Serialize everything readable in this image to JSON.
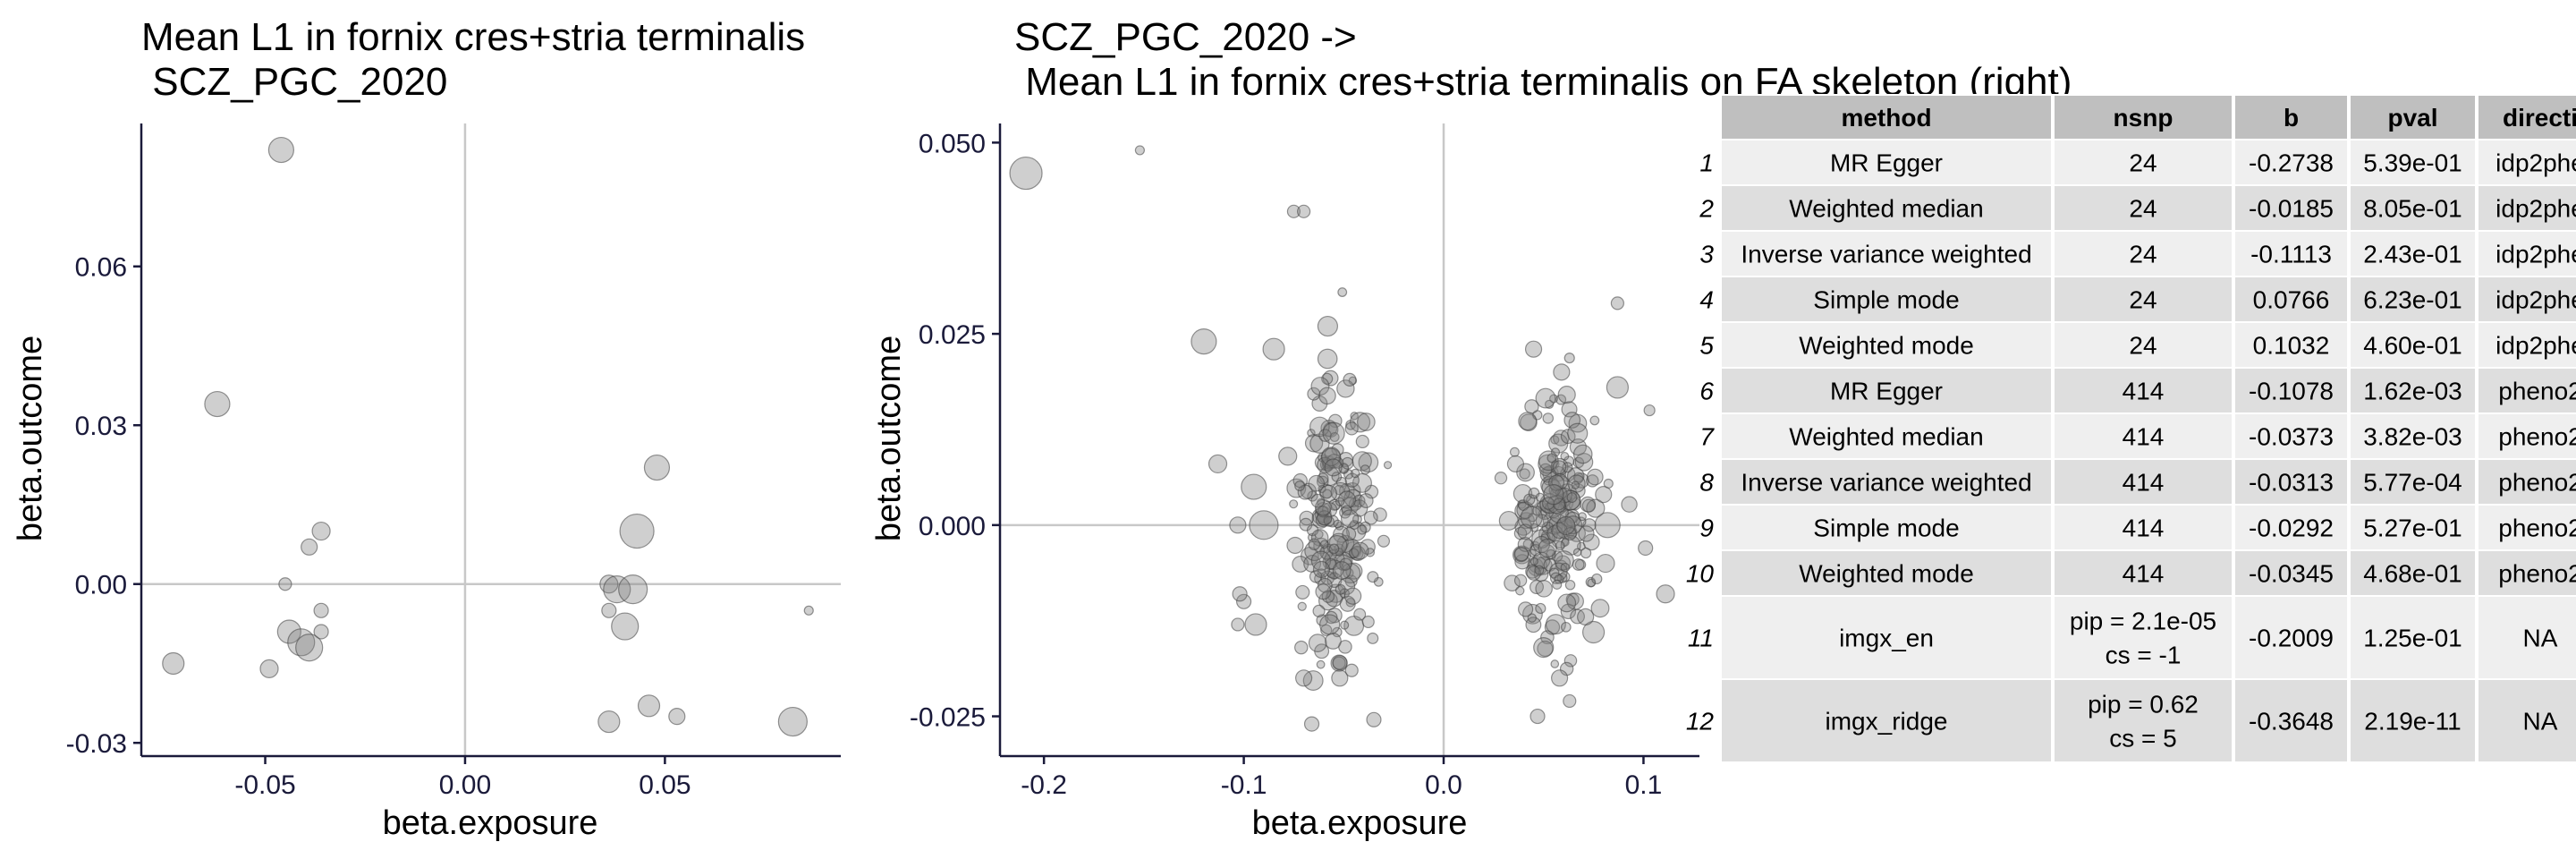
{
  "colors": {
    "point_fill": "#808080",
    "point_stroke": "#404040",
    "axis": "#1a1a3a",
    "zero_line": "#c8c8c8",
    "table_header": "#bfbfbf",
    "table_row_light": "#efefef",
    "table_row_dark": "#dedede",
    "table_border": "#ffffff"
  },
  "chart_data": [
    {
      "type": "scatter",
      "title_lines": [
        "Mean L1 in fornix cres+stria terminalis",
        " SCZ_PGC_2020"
      ],
      "xlabel": "beta.exposure",
      "ylabel": "beta.outcome",
      "xlim": [
        -0.081,
        0.094
      ],
      "ylim": [
        -0.0325,
        0.087
      ],
      "xticks": [
        -0.05,
        0.0,
        0.05
      ],
      "xtick_labels": [
        "-0.05",
        "0.00",
        "0.05"
      ],
      "yticks": [
        -0.03,
        0.0,
        0.03,
        0.06
      ],
      "ytick_labels": [
        "-0.03",
        "0.00",
        "0.03",
        "0.06"
      ],
      "zero_lines": true,
      "grid": false,
      "points": [
        {
          "x": -0.046,
          "y": 0.082,
          "size": 14
        },
        {
          "x": -0.062,
          "y": 0.034,
          "size": 14
        },
        {
          "x": -0.073,
          "y": -0.015,
          "size": 12
        },
        {
          "x": -0.049,
          "y": -0.016,
          "size": 10
        },
        {
          "x": -0.045,
          "y": 0.0,
          "size": 7
        },
        {
          "x": -0.036,
          "y": 0.01,
          "size": 10
        },
        {
          "x": -0.039,
          "y": 0.007,
          "size": 9
        },
        {
          "x": -0.036,
          "y": -0.005,
          "size": 8
        },
        {
          "x": -0.036,
          "y": -0.009,
          "size": 8
        },
        {
          "x": -0.044,
          "y": -0.009,
          "size": 13
        },
        {
          "x": -0.041,
          "y": -0.011,
          "size": 15
        },
        {
          "x": -0.039,
          "y": -0.012,
          "size": 15
        },
        {
          "x": 0.048,
          "y": 0.022,
          "size": 14
        },
        {
          "x": 0.043,
          "y": 0.01,
          "size": 19
        },
        {
          "x": 0.036,
          "y": 0.0,
          "size": 10
        },
        {
          "x": 0.038,
          "y": -0.001,
          "size": 15
        },
        {
          "x": 0.042,
          "y": -0.001,
          "size": 16
        },
        {
          "x": 0.036,
          "y": -0.005,
          "size": 8
        },
        {
          "x": 0.04,
          "y": -0.008,
          "size": 15
        },
        {
          "x": 0.046,
          "y": -0.023,
          "size": 12
        },
        {
          "x": 0.036,
          "y": -0.026,
          "size": 12
        },
        {
          "x": 0.053,
          "y": -0.025,
          "size": 9
        },
        {
          "x": 0.082,
          "y": -0.026,
          "size": 16
        },
        {
          "x": 0.086,
          "y": -0.005,
          "size": 5
        }
      ]
    },
    {
      "type": "scatter",
      "title_lines": [
        "SCZ_PGC_2020 ->",
        " Mean L1 in fornix cres+stria terminalis on FA skeleton (right)"
      ],
      "xlabel": "beta.exposure",
      "ylabel": "beta.outcome",
      "xlim": [
        -0.222,
        0.128
      ],
      "ylim": [
        -0.0302,
        0.0525
      ],
      "xticks": [
        -0.2,
        -0.1,
        0.0,
        0.1
      ],
      "xtick_labels": [
        "-0.2",
        "-0.1",
        "0.0",
        "0.1"
      ],
      "yticks": [
        -0.025,
        0.0,
        0.025,
        0.05
      ],
      "ytick_labels": [
        "-0.025",
        "0.000",
        "0.025",
        "0.050"
      ],
      "zero_lines": true,
      "grid": false,
      "points": [
        {
          "x": -0.209,
          "y": 0.046,
          "size": 18
        },
        {
          "x": -0.152,
          "y": 0.049,
          "size": 5
        },
        {
          "x": -0.12,
          "y": 0.024,
          "size": 14
        },
        {
          "x": -0.085,
          "y": 0.023,
          "size": 12
        },
        {
          "x": -0.075,
          "y": 0.041,
          "size": 7
        },
        {
          "x": -0.07,
          "y": 0.041,
          "size": 7
        },
        {
          "x": -0.058,
          "y": 0.026,
          "size": 11
        },
        {
          "x": -0.113,
          "y": 0.008,
          "size": 10
        },
        {
          "x": -0.1,
          "y": -0.01,
          "size": 8
        },
        {
          "x": -0.103,
          "y": -0.013,
          "size": 7
        },
        {
          "x": -0.102,
          "y": -0.009,
          "size": 8
        },
        {
          "x": -0.103,
          "y": 0.0,
          "size": 9
        },
        {
          "x": -0.09,
          "y": 0.0,
          "size": 16
        },
        {
          "x": -0.095,
          "y": 0.005,
          "size": 14
        },
        {
          "x": -0.094,
          "y": -0.013,
          "size": 12
        },
        {
          "x": -0.057,
          "y": -0.013,
          "size": 11
        },
        {
          "x": -0.052,
          "y": -0.02,
          "size": 9
        },
        {
          "x": -0.066,
          "y": -0.026,
          "size": 8
        },
        {
          "x": -0.07,
          "y": -0.02,
          "size": 9
        },
        {
          "x": -0.052,
          "y": -0.018,
          "size": 8
        },
        {
          "x": -0.046,
          "y": -0.019,
          "size": 7
        },
        {
          "x": -0.047,
          "y": 0.019,
          "size": 7
        },
        {
          "x": -0.078,
          "y": 0.009,
          "size": 10
        },
        {
          "x": -0.055,
          "y": 0.012,
          "size": 12
        },
        {
          "x": 0.045,
          "y": 0.023,
          "size": 9
        },
        {
          "x": 0.059,
          "y": 0.02,
          "size": 9
        },
        {
          "x": 0.087,
          "y": 0.029,
          "size": 7
        },
        {
          "x": 0.087,
          "y": 0.018,
          "size": 12
        },
        {
          "x": 0.103,
          "y": 0.015,
          "size": 6
        },
        {
          "x": 0.08,
          "y": 0.004,
          "size": 9
        },
        {
          "x": 0.081,
          "y": -0.005,
          "size": 10
        },
        {
          "x": 0.075,
          "y": -0.014,
          "size": 12
        },
        {
          "x": 0.047,
          "y": -0.025,
          "size": 8
        },
        {
          "x": 0.063,
          "y": -0.023,
          "size": 7
        },
        {
          "x": 0.111,
          "y": -0.009,
          "size": 10
        },
        {
          "x": 0.101,
          "y": -0.003,
          "size": 8
        },
        {
          "x": 0.082,
          "y": 0.0,
          "size": 14
        },
        {
          "x": 0.058,
          "y": -0.02,
          "size": 9
        },
        {
          "x": 0.05,
          "y": -0.016,
          "size": 11
        },
        {
          "x": 0.067,
          "y": 0.012,
          "size": 11
        },
        {
          "x": 0.036,
          "y": 0.008,
          "size": 9
        },
        {
          "x": 0.071,
          "y": -0.012,
          "size": 9
        },
        {
          "x": 0.041,
          "y": -0.011,
          "size": 8
        },
        {
          "x": 0.044,
          "y": 0.001,
          "size": 12
        },
        {
          "x": 0.055,
          "y": 0.004,
          "size": 11
        },
        {
          "x": 0.052,
          "y": -0.003,
          "size": 10
        }
      ],
      "clusters": [
        {
          "x_center": -0.053,
          "x_sd": 0.0095,
          "y_center": 0.0,
          "y_sd": 0.0082,
          "count": 200,
          "size_min": 4,
          "size_max": 11
        },
        {
          "x_center": 0.055,
          "x_sd": 0.0105,
          "y_center": 0.0,
          "y_sd": 0.0078,
          "count": 200,
          "size_min": 4,
          "size_max": 11
        }
      ]
    }
  ],
  "table": {
    "columns": [
      "method",
      "nsnp",
      "b",
      "pval",
      "directi"
    ],
    "rows": [
      {
        "num": "1",
        "cells": [
          "MR Egger",
          [
            "24"
          ],
          "-0.2738",
          "5.39e-01",
          "idp2phe"
        ]
      },
      {
        "num": "2",
        "cells": [
          "Weighted median",
          [
            "24"
          ],
          "-0.0185",
          "8.05e-01",
          "idp2phe"
        ]
      },
      {
        "num": "3",
        "cells": [
          "Inverse variance weighted",
          [
            "24"
          ],
          "-0.1113",
          "2.43e-01",
          "idp2phe"
        ]
      },
      {
        "num": "4",
        "cells": [
          "Simple mode",
          [
            "24"
          ],
          "0.0766",
          "6.23e-01",
          "idp2phe"
        ]
      },
      {
        "num": "5",
        "cells": [
          "Weighted mode",
          [
            "24"
          ],
          "0.1032",
          "4.60e-01",
          "idp2phe"
        ]
      },
      {
        "num": "6",
        "cells": [
          "MR Egger",
          [
            "414"
          ],
          "-0.1078",
          "1.62e-03",
          "pheno2"
        ]
      },
      {
        "num": "7",
        "cells": [
          "Weighted median",
          [
            "414"
          ],
          "-0.0373",
          "3.82e-03",
          "pheno2"
        ]
      },
      {
        "num": "8",
        "cells": [
          "Inverse variance weighted",
          [
            "414"
          ],
          "-0.0313",
          "5.77e-04",
          "pheno2"
        ]
      },
      {
        "num": "9",
        "cells": [
          "Simple mode",
          [
            "414"
          ],
          "-0.0292",
          "5.27e-01",
          "pheno2"
        ]
      },
      {
        "num": "10",
        "cells": [
          "Weighted mode",
          [
            "414"
          ],
          "-0.0345",
          "4.68e-01",
          "pheno2"
        ]
      },
      {
        "num": "11",
        "cells": [
          "imgx_en",
          [
            "pip = 2.1e-05",
            "cs = -1"
          ],
          "-0.2009",
          "1.25e-01",
          "NA"
        ]
      },
      {
        "num": "12",
        "cells": [
          "imgx_ridge",
          [
            "pip = 0.62",
            "cs = 5"
          ],
          "-0.3648",
          "2.19e-11",
          "NA"
        ]
      }
    ]
  }
}
